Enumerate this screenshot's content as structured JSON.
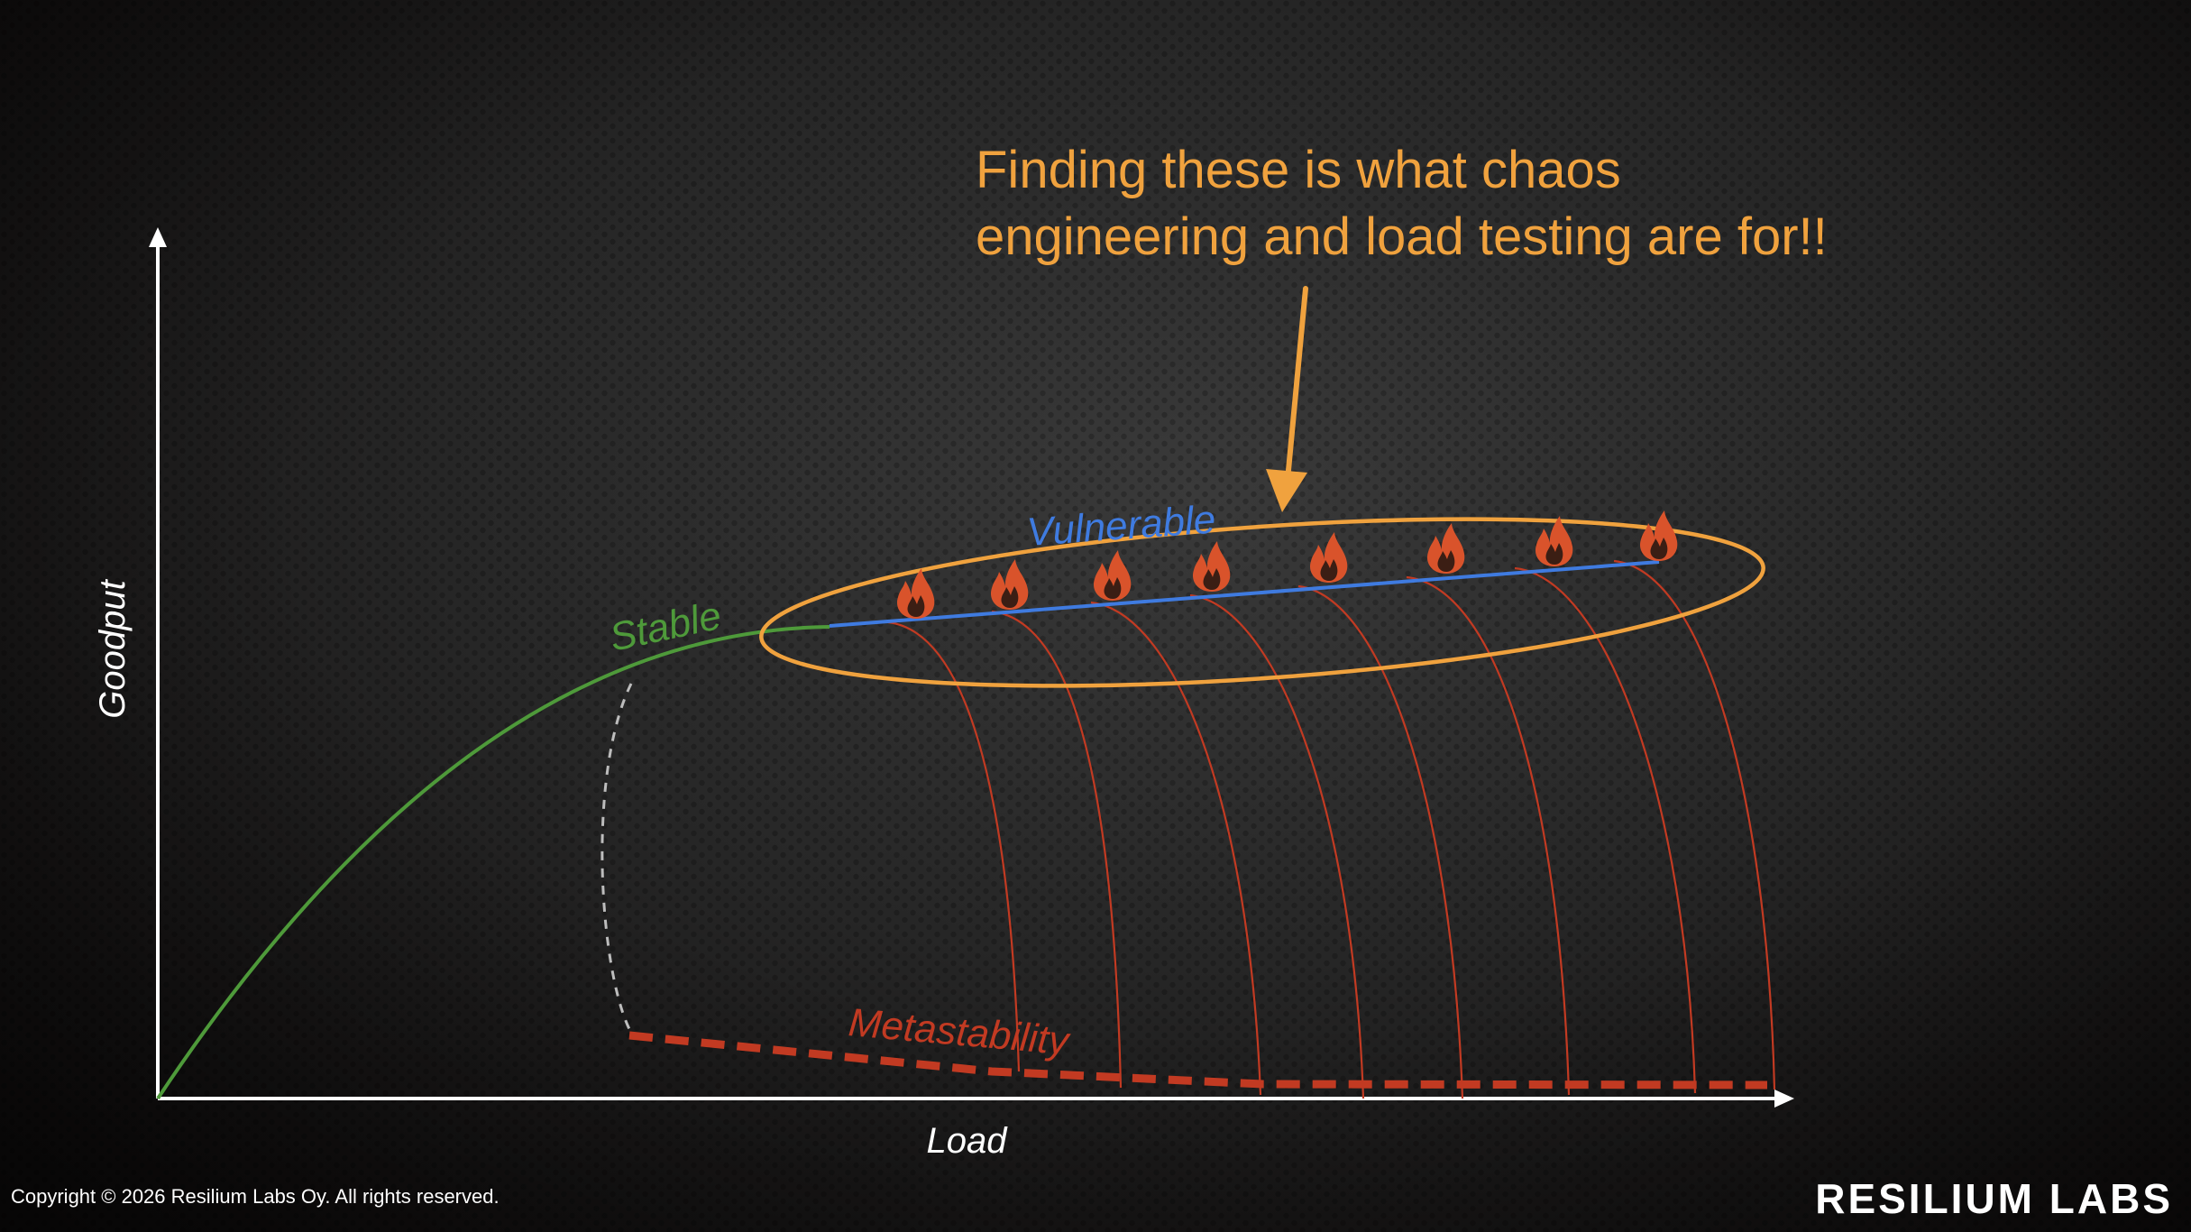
{
  "callout": {
    "line1": "Finding these is what chaos",
    "line2": "engineering and load testing are for!!"
  },
  "axes": {
    "x_label": "Load",
    "y_label": "Goodput"
  },
  "curves": {
    "stable_label": "Stable",
    "vulnerable_label": "Vulnerable",
    "metastability_label": "Metastability"
  },
  "footer": {
    "copyright": "Copyright © 2026 Resilium Labs Oy. All rights reserved.",
    "brand": "RESILIUM LABS"
  },
  "colors": {
    "stable": "#4e9a3a",
    "vulnerable": "#3f7be0",
    "metastability": "#c23a22",
    "callout": "#f0a23e",
    "axis": "#ffffff",
    "dashed_transition": "#bdbdbd"
  },
  "icons": {
    "hazard_marker": "fire-icon",
    "hazard_count": 8
  }
}
